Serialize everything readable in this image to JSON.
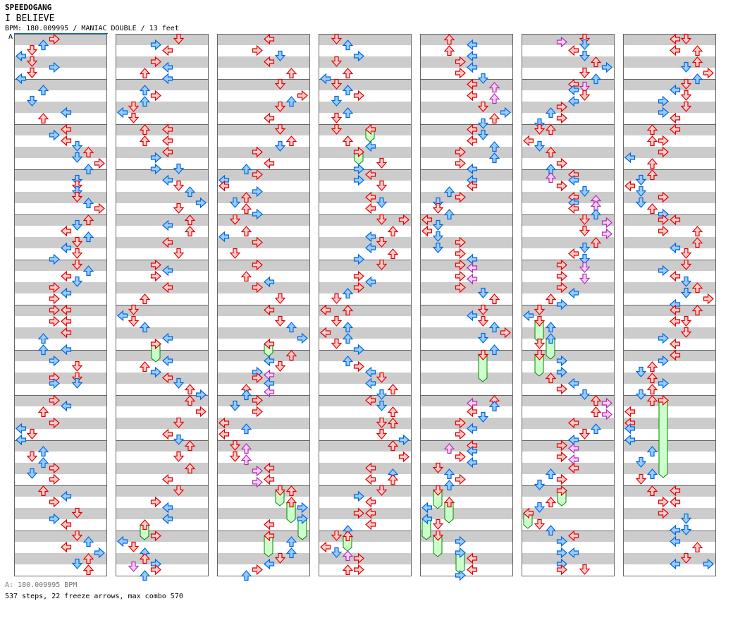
{
  "header": {
    "artist": "SPEEDOGANG",
    "title": "I BELIEVE",
    "info": "BPM: 180.009995 / MANIAC DOUBLE / 13 feet",
    "segment_label": "A"
  },
  "footer": {
    "bpm_line": "A: 180.009995 BPM",
    "stats": "537 steps, 22 freeze arrows, max combo 570"
  },
  "colors": {
    "quarter": {
      "stroke": "#e00000",
      "fill": "#ffcccc"
    },
    "eighth": {
      "stroke": "#0066dd",
      "fill": "#99ccff"
    },
    "sixteenth": {
      "stroke": "#aa33aa",
      "fill": "#ffccff"
    },
    "freeze": {
      "stroke": "#008800",
      "fill": "#ccffcc"
    },
    "stripe": "#cccccc",
    "border": "#666666"
  },
  "steps": {
    "format": "beat:lanes[:freezeBeats]; lanes 0-3 = P1 L,D,U,R; 4-7 = P2 L,D,U,R; 48 beats per column",
    "beats_per_column": 48,
    "columns": [
      "0:3,0.5:2,1:1,1.5:0,2:1,2.5:3,3:1,3.5:0,4.5:2,5.5:1,6.5:4,7:2,8:4,8.5:3,9:4,9.5:5,10:6,10.5:5,11:7,11.5:6,12.5:5,13:5,13.5:5,14:5,14.5:6,15:7,16:6,16.5:5,17:4,17.5:6,18:5,18.5:4,19:5,19.5:3,20:5,20.5:6,21:4,21.5:5,22:3,22.5:4,23:3,24:34,25:34,26:4,26.5:2,27.5:24,28.5:3,29:5,30:35,30.5:35,32:3,32.5:4,33:2,34:3,34.5:0,35:1,35.5:0,36.5:2,37:1,37.5:2,38:3,38.5:1,39:3,40:2,40.5:4,41:3,42:5,42.5:3,43:4,44:5,44.5:6,45:4,45.5:7,46:6,46.5:5,47:6",
      "0:5,0.5:3,1:4,2:3,2.5:4,3:2,3.5:4,4.5:2,5:3,5.5:2,6:1,6.5:0,7:1,8:24,9:24,10:4,10.5:3,11.5:35,12.5:4,13:5,13.5:6,14.5:7,15:5,16:6,16.5:4,17:6,18:4,19:5,20:3,20.5:4,21:3,22:4,23:2,24:1,24.5:0,25:1,25.5:2,26.5:4,27:3:1.5,28.5:4,29:2,29.5:3,30:4,30.5:5,31:6,31.5:7,32:6,33:7,34:5,35:4,35.5:5,36:6,37:5,38:6,39:4,40:5,41:3,41.5:4,42.5:4,43:2:1.25,44:3,44.5:0,45:1,45.5:2,46:2,46.5:3,46.75:1,47:3,47.5:2",
      "0:4,1:3,1.5:5,2:4,3:6,4:5,5:7,5.5:6,6:5,7:4,8:5,9:6,9.5:5,10:3,11:4,11.5:2,12:3,12.5:0,13:0,13.5:3,14:2,14.5:1,15:2,15.5:3,16:1,17:2,17.5:0,18:3,19:1,20:3,21:2,21.5:4,22:3,23:5,24:4,25:5,25.5:6,26.5:7,27:4:1,28:6,28.5:4,29:5,29.5:3,29.75:4,30:3,30.5:4,31:2,31.25:4,31.5:2,32:3,32.5:1,33:3,34:0,34.5:2,35:0,36:1,36.25:2,37:1,37.25:2,38:4,38.25:3,39:4,39.25:3,40:5:1.25,40:6,41:6:1.75,41.5:7,42.5:7:1.75,43:4,44:4:1.75,44.5:6,45.5:6,46:5,46.5:4,47:3,47.5:2",
      "0:1,0.5:2,1.5:3,2:1,3:2,3.5:0,4:1,4.5:2,5:3,5.5:1,6.5:2,7:1,8:1,8:4:1,9:2,9.5:4,10:3:1,11:5,11.5:3,12:4,12.5:3,13:5,14:4,14.5:5,15:4,16:57,17:6,17.5:4,18:5,18.5:4,19:6,19.5:3,20:5,21:3,21.5:4,22:3,22.5:2,23:1,24:02,25:1,25.5:2,26:0,26.5:2,27:1,27.5:3,28.5:2,29:3,29.5:4,30:5,30.5:4,31:6,31.5:5,32:4,32.5:5,33:6,34:56,35:5,35.5:7,36:6,37:7,38:4,38.5:6,39:46,40:5,40.5:3,41:4,42:34,43:4,43.5:2,44:1,44:2:1.25,45:0,45.5:1,45.75:2,46:3,47:23",
      "0:2,0.5:4,1:2,1.5:4,2:3,2.5:4,3:3,3.5:5,4:4,4.25:6,5:4,5.25:6,6:5,6.5:7,7:6,7.5:5,8:4,8.5:5,9:4,9.5:6,10:3,10.5:6,11:3,11.5:4,12.5:4,13:4,13.5:2,14:3,14.5:1,15:1,15.5:2,16:0,16.5:1,17:0,17.5:1,18:3,18.5:1,19:3,19.5:4,20:3,20.25:4,21:3,21.25:4,22:3,22.5:5,23:6,24:5,24.5:4,25:5,25.5:6,26:7,26.5:5,27.5:6,28:5:2.25,32:6,32.25:4,32.5:6,33:4,33.5:5,34:3,34.5:4,35:3,36:4,36.25:2,36.5:4,37:3,37.5:4,38:1,38.5:2,39:3,39.5:2,40:1:1.5,41:2:1.75,41.5:0,42.5:0:1.75,43:1,44:1:1.75,44.5:3,45.5:3:1.75,46:4,47:4,47.5:3",
      "0:5,0.25:3,0.5:5,1:4,1.5:5,2:6,2.5:7,3:5,3.5:6,4:4,4.25:5,4.5:4,5:5,5.5:4,6:3,6.5:2,7:3,7.5:1,8:12,9:0,9.5:1,10:2,11:3,11.5:2,12:4,12.25:2,12.5:4,13:3,13.5:5,14:4,14.25:6,14.5:4,14.75:6,15:4,15.5:6,16:5,16.25:7,17:5,17.25:7,18:6,18.5:5,19:4,19.5:5,20:3,20.25:5,21:3,21.25:5,22:3,22.5:4,23:2,23.5:3,24:1,24.5:0,25:1:1.75,25.5:2,26.5:2:1.75,27:1,28:1:1.75,28.5:3,29.5:3,30:2,30.5:4,31:3,31.5:5,32:6,32.25:7,33:6,33.25:7,34:4,34.5:6,35:5,35.5:4,36:3,36.25:4,37:3,37.25:4,38:4,38.5:2,39:3,39.5:1,40:3:1.25,41:2,41.5:1,42:0:1.25,43:1,43.5:2,44:4,44.5:3,45.5:34,46.5:3,47:35",
      "0:45,1:46,2:6,2.5:5,3:7,3.5:6,4:5,4.5:4,5:5,5.5:3,6:5,6.5:3,7:4,8:24,9:23,10:3,10.5:0,11:2,12:2,12.5:1,13:0,13.5:1,14:3,14.5:1,15:2,15.5:3,16:34,17:36,18:6,18.5:4,19:5,20:5,20.5:3,21:4,21.5:5,22:6,22.5:5,23:7,23.5:4,24:46,25:45,26:5,26.5:3,27:4,28:4,28.5:3,29:2,29.5:1,30:2,30.5:3,31:2,31.5:1,32:2,32:3:6.75,33:0,34:0,34.5:0,35.5:0,36.5:2,37.5:1,38.5:2,39:1,40:24,41:34,42:3,42.5:5,43.5:45,44.5:4,45:6,46:5,46.5:47"
    ]
  }
}
